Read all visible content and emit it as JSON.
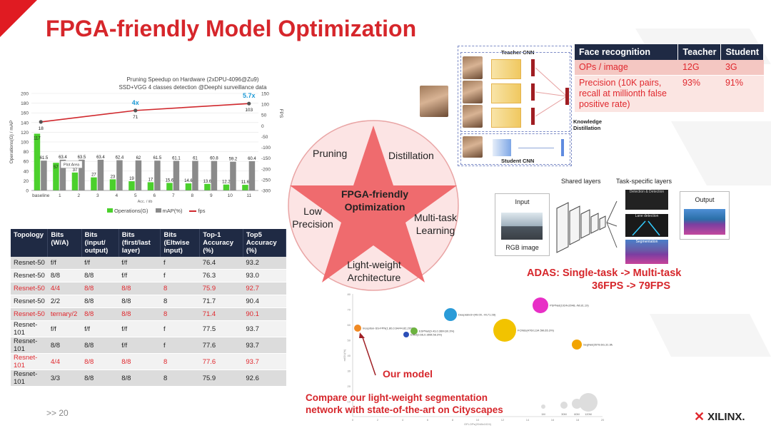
{
  "slide": {
    "title": "FPGA-friendly Model Optimization",
    "page_number": ">> 20",
    "logo_text": "XILINX."
  },
  "pruning_chart": {
    "title_line1": "Pruning Speedup on Hardware (2xDPU-4096@Zu9)",
    "title_line2": "SSD+VGG 4 classes detection @Deephi surveillance data",
    "left_axis_label": "Operations(G) / mAP",
    "right_axis_label": "FPS",
    "x_axis_label": "Acc. / iib",
    "plot_area_label": "Plot Area",
    "speedup_labels": [
      "4x",
      "5.7x"
    ],
    "legend": [
      "Operations(G)",
      "mAP(%)",
      "fps"
    ],
    "left_ticks": [
      "200",
      "180",
      "160",
      "140",
      "120",
      "100",
      "80",
      "60",
      "40",
      "20",
      "0"
    ],
    "right_ticks": [
      "150",
      "100",
      "50",
      "0",
      "-50",
      "-100",
      "-150",
      "-200",
      "-250",
      "-300"
    ]
  },
  "chart_data": {
    "type": "bar",
    "categories": [
      "baseline",
      "1",
      "2",
      "3",
      "4",
      "5",
      "6",
      "7",
      "8",
      "9",
      "10",
      "11"
    ],
    "series": [
      {
        "name": "Operations(G)",
        "values": [
          117,
          57,
          37,
          27,
          23,
          19,
          17,
          15.6,
          14.6,
          13.6,
          12.2,
          11.6
        ]
      },
      {
        "name": "mAP(%)",
        "values": [
          61.5,
          63.4,
          63.5,
          63.4,
          62.4,
          62,
          61.5,
          61.1,
          61,
          60.8,
          59.2,
          60.4
        ]
      },
      {
        "name": "fps",
        "type": "line",
        "points": [
          {
            "x": "baseline",
            "y": 18
          },
          {
            "x": "5",
            "y": 71
          },
          {
            "x": "11",
            "y": 103
          }
        ]
      }
    ],
    "ylim": [
      0,
      200
    ],
    "y2lim": [
      -300,
      150
    ],
    "xlabel": "Acc. / iib",
    "ylabel": "Operations(G) / mAP",
    "y2label": "FPS"
  },
  "topology_table": {
    "headers": [
      "Topology",
      "Bits (W/A)",
      "Bits (input/ output)",
      "Bits (first/last layer)",
      "Bits (Eltwise input)",
      "Top-1 Accuracy (%)",
      "Top5 Accuracy (%)"
    ],
    "rows": [
      {
        "cells": [
          "Resnet-50",
          "f/f",
          "f/f",
          "f/f",
          "f",
          "76.4",
          "93.2"
        ],
        "highlight": false
      },
      {
        "cells": [
          "Resnet-50",
          "8/8",
          "8/8",
          "f/f",
          "f",
          "76.3",
          "93.0"
        ],
        "highlight": false
      },
      {
        "cells": [
          "Resnet-50",
          "4/4",
          "8/8",
          "8/8",
          "8",
          "75.9",
          "92.7"
        ],
        "highlight": true
      },
      {
        "cells": [
          "Resnet-50",
          "2/2",
          "8/8",
          "8/8",
          "8",
          "71.7",
          "90.4"
        ],
        "highlight": false
      },
      {
        "cells": [
          "Resnet-50",
          "ternary/2",
          "8/8",
          "8/8",
          "8",
          "71.4",
          "90.1"
        ],
        "highlight": true
      },
      {
        "cells": [
          "Resnet-101",
          "f/f",
          "f/f",
          "f/f",
          "f",
          "77.5",
          "93.7"
        ],
        "highlight": false
      },
      {
        "cells": [
          "Resnet-101",
          "8/8",
          "8/8",
          "f/f",
          "f",
          "77.6",
          "93.7"
        ],
        "highlight": false
      },
      {
        "cells": [
          "Resnet-101",
          "4/4",
          "8/8",
          "8/8",
          "8",
          "77.6",
          "93.7"
        ],
        "highlight": true
      },
      {
        "cells": [
          "Resnet-101",
          "3/3",
          "8/8",
          "8/8",
          "8",
          "75.9",
          "92.6"
        ],
        "highlight": false
      }
    ]
  },
  "star": {
    "center": "FPGA-friendly Optimization",
    "pruning": "Pruning",
    "distillation": "Distillation",
    "low_precision": "Low Precision",
    "multitask": "Multi-task Learning",
    "lightweight": "Light-weight Architecture"
  },
  "distillation": {
    "teacher_label": "Teacher CNN",
    "student_label": "Student CNN",
    "caption": "Knowledge Distillation"
  },
  "face_table": {
    "headers": [
      "Face recognition",
      "Teacher",
      "Student"
    ],
    "rows": [
      [
        "OPs / image",
        "12G",
        "3G"
      ],
      [
        "Precision (10K pairs, recall at millionth false positive rate)",
        "93%",
        "91%"
      ]
    ]
  },
  "multitask": {
    "shared_layers": "Shared layers",
    "task_specific_layers": "Task-specific layers",
    "input": "Input",
    "rgb_image": "RGB image",
    "output": "Output",
    "task1": "Detection & Detection",
    "task2": "Lane detection",
    "task3": "Segmentation",
    "caption_line1": "ADAS: Single-task -> Multi-task",
    "caption_line2": "36FPS -> 79FPS"
  },
  "bubble_chart": {
    "our_model": "Our model",
    "caption_line1": "Compare our light-weight segmentation",
    "caption_line2": "network with state-of-the-art on Cityscapes",
    "y_axis_label": "mIOU(%)",
    "x_axis_label": "GFLOPs(2048x1024)",
    "y_ticks": [
      "80",
      "70",
      "60",
      "50",
      "40",
      "30",
      "20",
      "10"
    ],
    "x_ticks": [
      "0",
      "2",
      "4",
      "6",
      "8",
      "10",
      "12",
      "14",
      "16",
      "18",
      "20"
    ],
    "size_legend": [
      "1M",
      "30M",
      "60M",
      "120M"
    ],
    "bubbles": [
      {
        "label": "Inception-SS-FPN(1.80,0.64/44.82,29%)",
        "color": "#f08a24"
      },
      {
        "label": "Deeplabv3+(49.00, -M,71.28)",
        "color": "#2a9bd8"
      },
      {
        "label": "PSPNet(1024x2048,-/M,81.19)",
        "color": "#e82fc6"
      },
      {
        "label": "ESPNet(9.43,0.36M,60.3%)",
        "color": "#6cb33f"
      },
      {
        "label": "ENet(3.66,0.36M,58.3%)",
        "color": "#2c4fb8"
      },
      {
        "label": "FCN8s(4760,134.5M,65.3%)",
        "color": "#f2c300"
      },
      {
        "label": "SegNet(2678.6G,31.6M,57%)",
        "color": "#f2a400"
      }
    ]
  }
}
